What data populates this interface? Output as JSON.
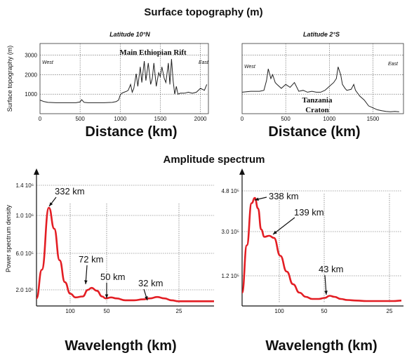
{
  "headings": {
    "topography": "Surface topography (m)",
    "spectrum": "Amplitude spectrum"
  },
  "chart_data": [
    {
      "type": "line",
      "subtitle": "Latitude 10°N",
      "annotation": "Main Ethiopian Rift",
      "west_label": "West",
      "east_label": "East",
      "xlabel": "Distance (km)",
      "ylabel": "Surface topography (m)",
      "xlim": [
        0,
        2100
      ],
      "ylim": [
        0,
        3600
      ],
      "xticks": [
        "0",
        "500",
        "1000",
        "1500",
        "2000"
      ],
      "yticks": [
        "1000",
        "2000",
        "3000"
      ],
      "x": [
        0,
        50,
        100,
        200,
        300,
        400,
        450,
        500,
        520,
        550,
        600,
        700,
        800,
        900,
        950,
        980,
        1000,
        1020,
        1050,
        1080,
        1100,
        1130,
        1150,
        1170,
        1200,
        1220,
        1250,
        1270,
        1300,
        1320,
        1350,
        1380,
        1400,
        1420,
        1450,
        1480,
        1500,
        1520,
        1550,
        1570,
        1600,
        1620,
        1640,
        1660,
        1680,
        1700,
        1720,
        1750,
        1800,
        1850,
        1900,
        1950,
        2000,
        2050,
        2080
      ],
      "y": [
        700,
        620,
        580,
        560,
        560,
        560,
        560,
        600,
        720,
        580,
        560,
        560,
        560,
        580,
        620,
        700,
        950,
        1050,
        1100,
        1150,
        1200,
        1500,
        1100,
        1300,
        2050,
        1400,
        2400,
        1600,
        2700,
        1700,
        2600,
        1500,
        1800,
        2600,
        1400,
        2100,
        1900,
        2400,
        1800,
        1600,
        2600,
        1500,
        2800,
        1700,
        1000,
        1400,
        1000,
        1050,
        1050,
        1100,
        1050,
        1100,
        1300,
        1200,
        1500
      ]
    },
    {
      "type": "line",
      "subtitle": "Latitude 2°S",
      "annotation_line1": "Tanzania",
      "annotation_line2": "Craton",
      "west_label": "West",
      "east_label": "East",
      "xlabel": "Distance (km)",
      "xlim": [
        0,
        1850
      ],
      "xticks": [
        "0",
        "500",
        "1000",
        "1500"
      ],
      "x": [
        0,
        100,
        200,
        250,
        280,
        300,
        330,
        350,
        380,
        400,
        450,
        500,
        550,
        600,
        650,
        700,
        750,
        800,
        850,
        900,
        950,
        1000,
        1050,
        1080,
        1100,
        1130,
        1150,
        1180,
        1200,
        1250,
        1280,
        1300,
        1350,
        1400,
        1450,
        1500,
        1550,
        1600,
        1650,
        1700,
        1750,
        1800
      ],
      "y": [
        1100,
        1150,
        1150,
        1200,
        1700,
        2300,
        1800,
        2000,
        1600,
        1500,
        1300,
        1500,
        1350,
        1600,
        1150,
        1200,
        1100,
        1150,
        1100,
        1100,
        1200,
        1400,
        1600,
        1800,
        2400,
        2000,
        1500,
        1300,
        1200,
        1250,
        1500,
        1200,
        900,
        700,
        400,
        300,
        200,
        150,
        120,
        100,
        120,
        100
      ]
    },
    {
      "type": "line",
      "xlabel": "Wavelength (km)",
      "ylabel": "Power spectrum density",
      "yticks": [
        "1.4 10⁶",
        "1.0 10⁶",
        "6.0 10⁵",
        "2.0 10⁵"
      ],
      "xticks": [
        "100",
        "50",
        "25"
      ],
      "peaks": [
        {
          "label": "332 km",
          "value": 1100000
        },
        {
          "label": "72 km",
          "value": 180000
        },
        {
          "label": "50 km",
          "value": 50000
        },
        {
          "label": "32 km",
          "value": 70000
        }
      ],
      "curve_y": [
        0.05,
        0.35,
        1.0,
        0.78,
        0.45,
        0.22,
        0.1,
        0.06,
        0.07,
        0.14,
        0.16,
        0.13,
        0.07,
        0.05,
        0.06,
        0.05,
        0.03,
        0.03,
        0.04,
        0.05,
        0.065,
        0.05,
        0.03,
        0.02,
        0.02,
        0.02,
        0.02,
        0.02,
        0.02,
        0.02
      ],
      "curve_x": [
        0.0,
        0.03,
        0.07,
        0.1,
        0.13,
        0.16,
        0.19,
        0.22,
        0.26,
        0.29,
        0.31,
        0.34,
        0.37,
        0.39,
        0.42,
        0.45,
        0.5,
        0.55,
        0.6,
        0.64,
        0.68,
        0.72,
        0.76,
        0.8,
        0.84,
        0.88,
        0.92,
        0.95,
        0.98,
        1.0
      ]
    },
    {
      "type": "line",
      "yticks": [
        "4.8 10⁵",
        "3.0 10⁵",
        "1.2 10⁵"
      ],
      "xticks": [
        "100",
        "50",
        "25"
      ],
      "peaks": [
        {
          "label": "338 km",
          "value": 440000
        },
        {
          "label": "139 km",
          "value": 300000
        },
        {
          "label": "43 km",
          "value": 25000
        }
      ],
      "curve_y": [
        0.1,
        0.55,
        0.95,
        1.0,
        0.9,
        0.7,
        0.63,
        0.64,
        0.62,
        0.45,
        0.3,
        0.18,
        0.1,
        0.06,
        0.04,
        0.04,
        0.05,
        0.07,
        0.06,
        0.04,
        0.03,
        0.025,
        0.02,
        0.02,
        0.02,
        0.02,
        0.025
      ],
      "curve_x": [
        0.0,
        0.03,
        0.06,
        0.08,
        0.1,
        0.12,
        0.14,
        0.17,
        0.2,
        0.24,
        0.28,
        0.32,
        0.36,
        0.4,
        0.44,
        0.48,
        0.52,
        0.55,
        0.58,
        0.62,
        0.66,
        0.72,
        0.78,
        0.85,
        0.9,
        0.95,
        1.0
      ]
    }
  ],
  "colors": {
    "topo_line": "#222222",
    "spectrum_line": "#e31e24",
    "axis": "#111111"
  }
}
